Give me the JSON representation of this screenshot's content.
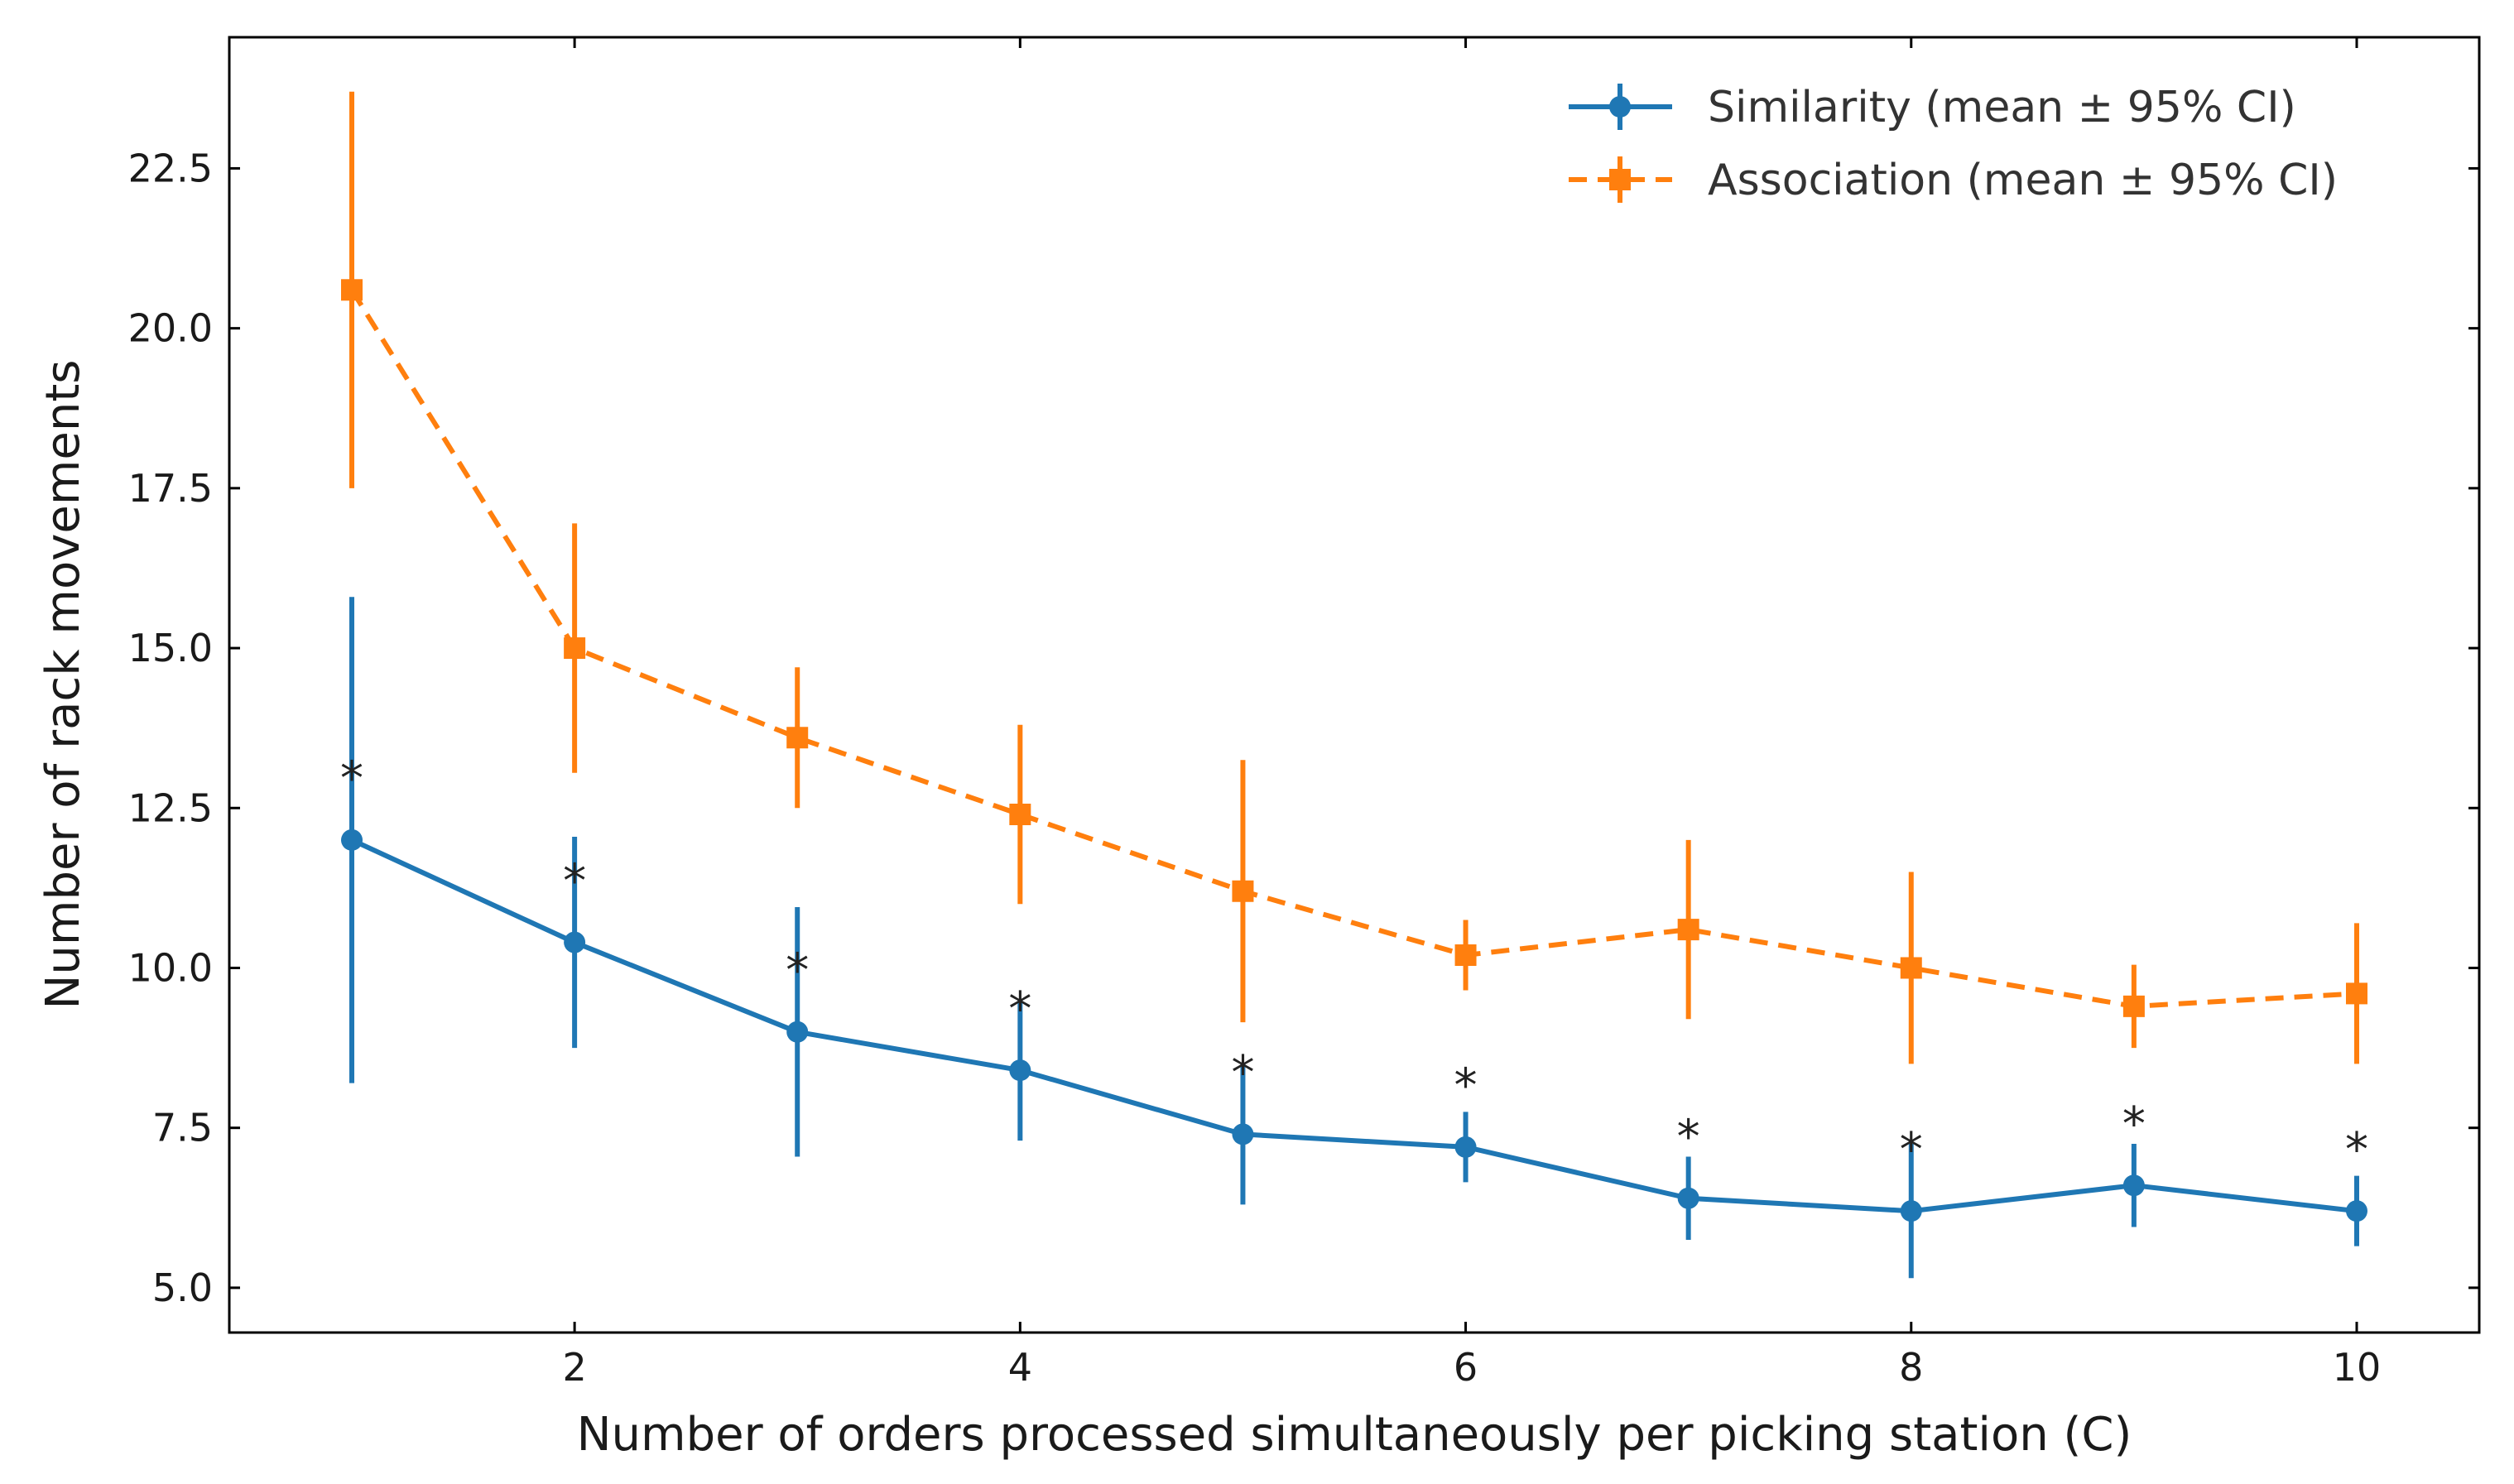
{
  "chart_data": {
    "type": "line",
    "title": "",
    "xlabel": "Number of orders processed simultaneously per picking station (C)",
    "ylabel": "Number of rack movements",
    "xlim": [
      0.45,
      10.55
    ],
    "ylim": [
      4.3,
      24.55
    ],
    "x": [
      1,
      2,
      3,
      4,
      5,
      6,
      7,
      8,
      9,
      10
    ],
    "xticks": [
      2,
      4,
      6,
      8,
      10
    ],
    "xtick_labels": [
      "2",
      "4",
      "6",
      "8",
      "10"
    ],
    "yticks": [
      5.0,
      7.5,
      10.0,
      12.5,
      15.0,
      17.5,
      20.0,
      22.5
    ],
    "ytick_labels": [
      "5.0",
      "7.5",
      "10.0",
      "12.5",
      "15.0",
      "17.5",
      "20.0",
      "22.5"
    ],
    "grid": false,
    "legend_position": "top-right",
    "series": [
      {
        "name": "Similarity (mean ± 95% CI)",
        "color": "#1f77b4",
        "marker": "circle",
        "linestyle": "solid",
        "values": [
          12.0,
          10.4,
          9.0,
          8.4,
          7.4,
          7.2,
          6.4,
          6.2,
          6.6,
          6.2
        ],
        "ci_low": [
          8.2,
          8.75,
          7.05,
          7.3,
          6.3,
          6.65,
          5.75,
          5.15,
          5.95,
          5.65
        ],
        "ci_high": [
          15.8,
          12.05,
          10.95,
          9.5,
          8.5,
          7.75,
          7.05,
          7.25,
          7.25,
          6.75
        ]
      },
      {
        "name": "Association (mean ± 95% CI)",
        "color": "#ff7f0e",
        "marker": "square",
        "linestyle": "dashed",
        "values": [
          20.6,
          15.0,
          13.6,
          12.4,
          11.2,
          10.2,
          10.6,
          10.0,
          9.4,
          9.6
        ],
        "ci_low": [
          17.5,
          13.05,
          12.5,
          11.0,
          9.15,
          9.65,
          9.2,
          8.5,
          8.75,
          8.5
        ],
        "ci_high": [
          23.7,
          16.95,
          14.7,
          13.8,
          13.25,
          10.75,
          12.0,
          11.5,
          10.05,
          10.7
        ]
      }
    ],
    "annotations": {
      "marker_text": "*",
      "positions": [
        {
          "x": 1,
          "y": 13.0
        },
        {
          "x": 2,
          "y": 11.4
        },
        {
          "x": 3,
          "y": 10.0
        },
        {
          "x": 4,
          "y": 9.4
        },
        {
          "x": 5,
          "y": 8.4
        },
        {
          "x": 6,
          "y": 8.2
        },
        {
          "x": 7,
          "y": 7.4
        },
        {
          "x": 8,
          "y": 7.2
        },
        {
          "x": 9,
          "y": 7.6
        },
        {
          "x": 10,
          "y": 7.2
        }
      ]
    }
  }
}
